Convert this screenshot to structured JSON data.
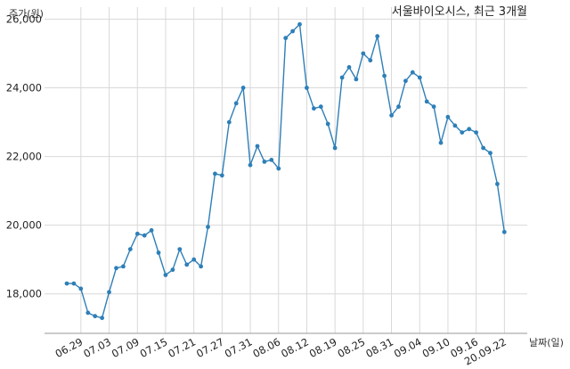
{
  "chart_data": {
    "type": "line",
    "title": "서울바이오시스, 최근 3개월",
    "ylabel": "주가(원)",
    "xlabel": "날짜(일)",
    "ylim": [
      16850,
      26350
    ],
    "yticks": [
      18000,
      20000,
      22000,
      24000,
      26000
    ],
    "ytick_labels": [
      "18,000",
      "20,000",
      "22,000",
      "24,000",
      "26,000"
    ],
    "xtick_labels": [
      "06.29",
      "07.03",
      "07.09",
      "07.15",
      "07.21",
      "07.27",
      "07.31",
      "08.06",
      "08.12",
      "08.19",
      "08.25",
      "08.31",
      "09.04",
      "09.10",
      "09.16",
      "20.09.22"
    ],
    "xtick_index": [
      2,
      6,
      10,
      14,
      18,
      22,
      26,
      30,
      34,
      38,
      42,
      46,
      50,
      54,
      58,
      62
    ],
    "grid": true,
    "line_color": "#2e7fb8",
    "values": [
      18300,
      18300,
      18150,
      17450,
      17350,
      17300,
      18050,
      18750,
      18800,
      19300,
      19750,
      19700,
      19850,
      19200,
      18550,
      18700,
      19300,
      18850,
      19000,
      18800,
      19950,
      21500,
      21450,
      23000,
      23550,
      24000,
      21750,
      22300,
      21850,
      21900,
      21650,
      25450,
      25650,
      25850,
      24000,
      23400,
      23450,
      22950,
      22250,
      24300,
      24600,
      24250,
      25000,
      24800,
      25500,
      24350,
      23200,
      23450,
      24200,
      24450,
      24300,
      23600,
      23450,
      22400,
      23150,
      22900,
      22700,
      22800,
      22700,
      22250,
      22100,
      21200,
      19800
    ]
  }
}
